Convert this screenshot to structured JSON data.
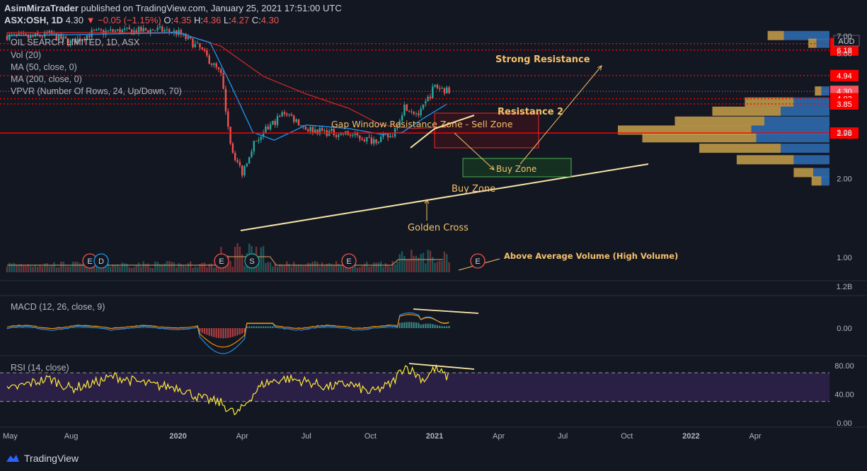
{
  "header": {
    "publisher": "AsimMirzaTrader",
    "published_text": "published on TradingView.com, January 25, 2021 17:51:00 UTC",
    "symbol": "ASX:OSH, 1D",
    "last": "4.30",
    "change": "▼ −0.05 (−1.15%)",
    "o_label": "O:",
    "o": "4.35",
    "h_label": "H:",
    "h": "4.36",
    "l_label": "L:",
    "l": "4.27",
    "c_label": "C:",
    "c": "4.30"
  },
  "legend": {
    "title": "OIL SEARCH LIMITED, 1D, ASX",
    "vol": "Vol (20)",
    "ma50": "MA (50, close, 0)",
    "ma200": "MA (200, close, 0)",
    "vpvr": "VPVR (Number Of Rows, 24, Up/Down, 70)",
    "macd": "MACD (12, 26, close, 9)",
    "rsi": "RSI (14, close)"
  },
  "brand": {
    "name": "TradingView"
  },
  "colors": {
    "background": "#131722",
    "up": "#26a69a",
    "down": "#ef5350",
    "ma50": "#2196f3",
    "ma200": "#c62828",
    "annotation": "#f5c06a",
    "level_line": "#ff0000",
    "rsi_line": "#ffeb3b",
    "rsi_band": "#2a1f45"
  },
  "chart_data": [
    {
      "type": "candlestick",
      "title": "OIL SEARCH LIMITED, 1D, ASX",
      "currency": "AUD",
      "x_ticks": [
        "May",
        "Aug",
        "2020",
        "Apr",
        "Jul",
        "Oct",
        "2021",
        "Apr",
        "Jul",
        "Oct",
        "2022",
        "Apr"
      ],
      "x_tick_months": [
        0,
        3,
        8,
        11,
        14,
        17,
        20,
        23,
        26,
        29,
        32,
        35
      ],
      "y_ticks": [
        7.0,
        6.0,
        3.0,
        2.0,
        1.0
      ],
      "ylim": [
        0.85,
        7.2
      ],
      "y_scale": "log",
      "price_points": [
        {
          "m": 0,
          "p": 7.0
        },
        {
          "m": 1,
          "p": 6.9
        },
        {
          "m": 2,
          "p": 7.1
        },
        {
          "m": 3,
          "p": 6.6
        },
        {
          "m": 4,
          "p": 7.2
        },
        {
          "m": 5,
          "p": 7.3
        },
        {
          "m": 6,
          "p": 7.3
        },
        {
          "m": 7,
          "p": 7.4
        },
        {
          "m": 8,
          "p": 7.2
        },
        {
          "m": 9,
          "p": 6.3
        },
        {
          "m": 10,
          "p": 5.0
        },
        {
          "m": 10.5,
          "p": 2.6
        },
        {
          "m": 11,
          "p": 2.1
        },
        {
          "m": 11.5,
          "p": 2.7
        },
        {
          "m": 12,
          "p": 3.0
        },
        {
          "m": 13,
          "p": 3.6
        },
        {
          "m": 14,
          "p": 3.1
        },
        {
          "m": 15,
          "p": 3.0
        },
        {
          "m": 16,
          "p": 2.95
        },
        {
          "m": 17,
          "p": 2.8
        },
        {
          "m": 18,
          "p": 2.9
        },
        {
          "m": 18.6,
          "p": 3.8
        },
        {
          "m": 19.3,
          "p": 3.5
        },
        {
          "m": 20,
          "p": 4.5
        },
        {
          "m": 20.7,
          "p": 4.3
        }
      ],
      "ma50_points": [
        {
          "m": 0,
          "p": 7.0
        },
        {
          "m": 8,
          "p": 7.2
        },
        {
          "m": 9.5,
          "p": 6.6
        },
        {
          "m": 10.5,
          "p": 4.5
        },
        {
          "m": 11.5,
          "p": 3.0
        },
        {
          "m": 12.5,
          "p": 2.8
        },
        {
          "m": 14,
          "p": 3.2
        },
        {
          "m": 16,
          "p": 3.1
        },
        {
          "m": 17.5,
          "p": 2.95
        },
        {
          "m": 18.5,
          "p": 3.0
        },
        {
          "m": 19.5,
          "p": 3.4
        },
        {
          "m": 20.7,
          "p": 3.9
        }
      ],
      "ma200_points": [
        {
          "m": 0,
          "p": 7.2
        },
        {
          "m": 8,
          "p": 7.2
        },
        {
          "m": 10,
          "p": 6.4
        },
        {
          "m": 12,
          "p": 4.9
        },
        {
          "m": 14,
          "p": 4.2
        },
        {
          "m": 16,
          "p": 3.7
        },
        {
          "m": 17.5,
          "p": 3.2
        },
        {
          "m": 19,
          "p": 3.1
        },
        {
          "m": 20.7,
          "p": 3.15
        }
      ],
      "price_levels": [
        {
          "label": "6.54",
          "value": 6.54
        },
        {
          "label": "6.18",
          "value": 6.18
        },
        {
          "label": "4.94",
          "value": 4.94
        },
        {
          "label": "4.30",
          "value": 4.3
        },
        {
          "label": "4.03",
          "value": 4.03
        },
        {
          "label": "3.85",
          "value": 3.85
        },
        {
          "label": "2.98",
          "value": 2.98
        }
      ],
      "annotations": [
        {
          "text": "Strong Resistance"
        },
        {
          "text": "Resistance 2"
        },
        {
          "text": "Gap Window Resistance Zone - Sell Zone"
        },
        {
          "text": "Buy Zone"
        },
        {
          "text": "Buy Zone"
        },
        {
          "text": "Golden Cross"
        },
        {
          "text": "Above Average Volume (High Volume)"
        }
      ],
      "events": [
        "E",
        "D",
        "E",
        "S",
        "E",
        "E"
      ],
      "vpvr_profile": [
        {
          "price": 7.0,
          "up": 0.1,
          "down": 0.28
        },
        {
          "price": 6.54,
          "up": 0.05,
          "down": 0.08
        },
        {
          "price": 4.3,
          "up": 0.04,
          "down": 0.05
        },
        {
          "price": 3.9,
          "up": 0.3,
          "down": 0.22
        },
        {
          "price": 3.6,
          "up": 0.42,
          "down": 0.3
        },
        {
          "price": 3.3,
          "up": 0.55,
          "down": 0.4
        },
        {
          "price": 3.05,
          "up": 0.82,
          "down": 0.48
        },
        {
          "price": 2.85,
          "up": 0.7,
          "down": 0.45
        },
        {
          "price": 2.6,
          "up": 0.5,
          "down": 0.3
        },
        {
          "price": 2.35,
          "up": 0.35,
          "down": 0.22
        },
        {
          "price": 2.1,
          "up": 0.12,
          "down": 0.1
        },
        {
          "price": 1.95,
          "up": 0.06,
          "down": 0.05
        }
      ]
    },
    {
      "type": "bar",
      "title": "Vol (20)",
      "y_ticks": [
        "1.2B"
      ],
      "ylim": [
        0,
        1.2
      ]
    },
    {
      "type": "line",
      "title": "MACD (12, 26, close, 9)",
      "y_ticks": [
        0.0
      ],
      "ylim": [
        -0.5,
        0.45
      ]
    },
    {
      "type": "line",
      "title": "RSI (14, close)",
      "y_ticks": [
        80.0,
        40.0,
        0.0
      ],
      "ylim": [
        0,
        85
      ],
      "band": [
        30,
        70
      ],
      "rsi_points": [
        {
          "m": 0,
          "v": 45
        },
        {
          "m": 1,
          "v": 55
        },
        {
          "m": 2,
          "v": 62
        },
        {
          "m": 3,
          "v": 48
        },
        {
          "m": 4,
          "v": 55
        },
        {
          "m": 5,
          "v": 65
        },
        {
          "m": 6,
          "v": 58
        },
        {
          "m": 7,
          "v": 52
        },
        {
          "m": 8,
          "v": 50
        },
        {
          "m": 9,
          "v": 35
        },
        {
          "m": 10,
          "v": 28
        },
        {
          "m": 10.7,
          "v": 12
        },
        {
          "m": 11,
          "v": 20
        },
        {
          "m": 11.5,
          "v": 40
        },
        {
          "m": 12,
          "v": 55
        },
        {
          "m": 13,
          "v": 62
        },
        {
          "m": 14,
          "v": 58
        },
        {
          "m": 15,
          "v": 50
        },
        {
          "m": 16,
          "v": 55
        },
        {
          "m": 17,
          "v": 42
        },
        {
          "m": 18,
          "v": 55
        },
        {
          "m": 18.6,
          "v": 80
        },
        {
          "m": 19.5,
          "v": 60
        },
        {
          "m": 20,
          "v": 76
        },
        {
          "m": 20.7,
          "v": 62
        }
      ]
    }
  ]
}
